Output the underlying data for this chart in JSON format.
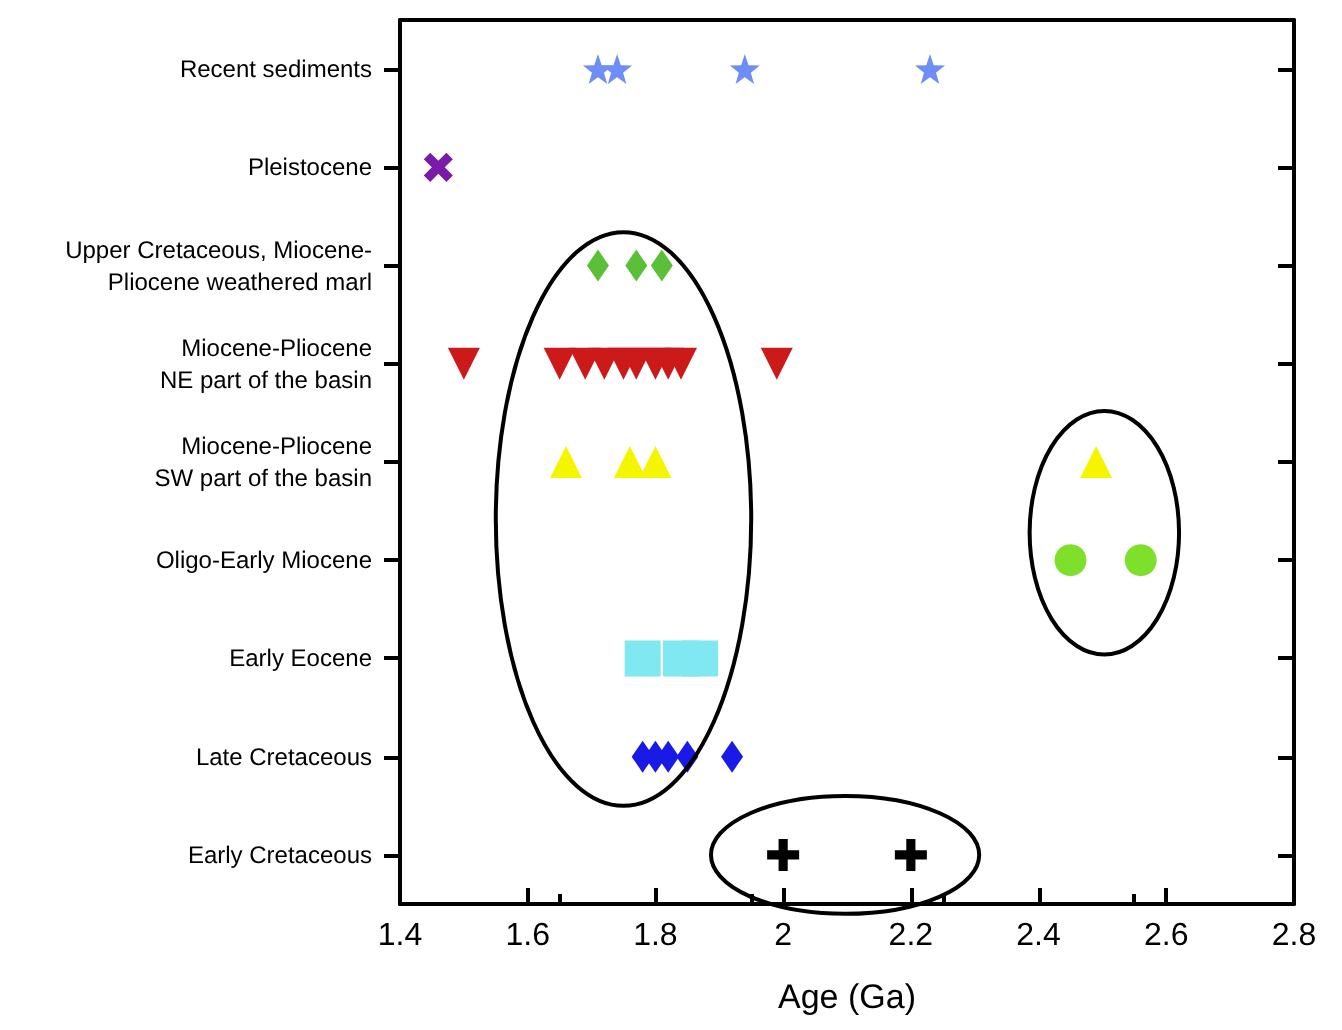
{
  "chart_data": {
    "type": "scatter",
    "xlabel": "Age (Ga)",
    "orientation": "horizontal",
    "categories": [
      "Recent sediments",
      "Pleistocene",
      "Upper Cretaceous, Miocene-\nPliocene weathered marl",
      "Miocene-Pliocene\nNE part of the basin",
      "Miocene-Pliocene\nSW part of the basin",
      "Oligo-Early Miocene",
      "Early Eocene",
      "Late Cretaceous",
      "Early Cretaceous"
    ],
    "xlim": [
      1.4,
      2.8
    ],
    "xticks": [
      1.4,
      1.6,
      1.8,
      2,
      2.2,
      2.4,
      2.6,
      2.8
    ],
    "grid": false,
    "series": [
      {
        "marker": "star",
        "color": "#6f8ef5",
        "values": [
          1.71,
          1.74,
          1.94,
          2.23
        ],
        "x": [
          "Recent sediments",
          "Recent sediments",
          "Recent sediments",
          "Recent sediments"
        ]
      },
      {
        "marker": "x",
        "color": "#7a1aa8",
        "values": [
          1.46
        ],
        "x": [
          "Pleistocene"
        ]
      },
      {
        "marker": "diamond",
        "color": "#5cbf3a",
        "values": [
          1.71,
          1.77,
          1.81
        ],
        "x": [
          "Upper Cretaceous, Miocene-\nPliocene weathered marl",
          "Upper Cretaceous, Miocene-\nPliocene weathered marl",
          "Upper Cretaceous, Miocene-\nPliocene weathered marl"
        ]
      },
      {
        "marker": "triangle_down",
        "color": "#cc1a1a",
        "values": [
          1.5,
          1.65,
          1.69,
          1.72,
          1.75,
          1.77,
          1.8,
          1.82,
          1.84,
          1.99
        ],
        "x": [
          "Miocene-Pliocene\nNE part of the basin",
          "Miocene-Pliocene\nNE part of the basin",
          "Miocene-Pliocene\nNE part of the basin",
          "Miocene-Pliocene\nNE part of the basin",
          "Miocene-Pliocene\nNE part of the basin",
          "Miocene-Pliocene\nNE part of the basin",
          "Miocene-Pliocene\nNE part of the basin",
          "Miocene-Pliocene\nNE part of the basin",
          "Miocene-Pliocene\nNE part of the basin",
          "Miocene-Pliocene\nNE part of the basin"
        ]
      },
      {
        "marker": "triangle",
        "color": "#f5f500",
        "values": [
          1.66,
          1.76,
          1.8,
          2.49
        ],
        "x": [
          "Miocene-Pliocene\nSW part of the basin",
          "Miocene-Pliocene\nSW part of the basin",
          "Miocene-Pliocene\nSW part of the basin",
          "Miocene-Pliocene\nSW part of the basin"
        ]
      },
      {
        "marker": "circle",
        "color": "#7ee02a",
        "values": [
          2.45,
          2.56
        ],
        "x": [
          "Oligo-Early Miocene",
          "Oligo-Early Miocene"
        ]
      },
      {
        "marker": "square",
        "color": "#80e8f0",
        "values": [
          1.78,
          1.84,
          1.87
        ],
        "x": [
          "Early Eocene",
          "Early Eocene",
          "Early Eocene"
        ]
      },
      {
        "marker": "diamond",
        "color": "#1a1ae6",
        "values": [
          1.78,
          1.8,
          1.82,
          1.85,
          1.92
        ],
        "x": [
          "Late Cretaceous",
          "Late Cretaceous",
          "Late Cretaceous",
          "Late Cretaceous",
          "Late Cretaceous"
        ]
      },
      {
        "marker": "cross",
        "color": "#000000",
        "values": [
          2,
          2.2
        ],
        "x": [
          "Early Cretaceous",
          "Early Cretaceous"
        ]
      }
    ]
  }
}
